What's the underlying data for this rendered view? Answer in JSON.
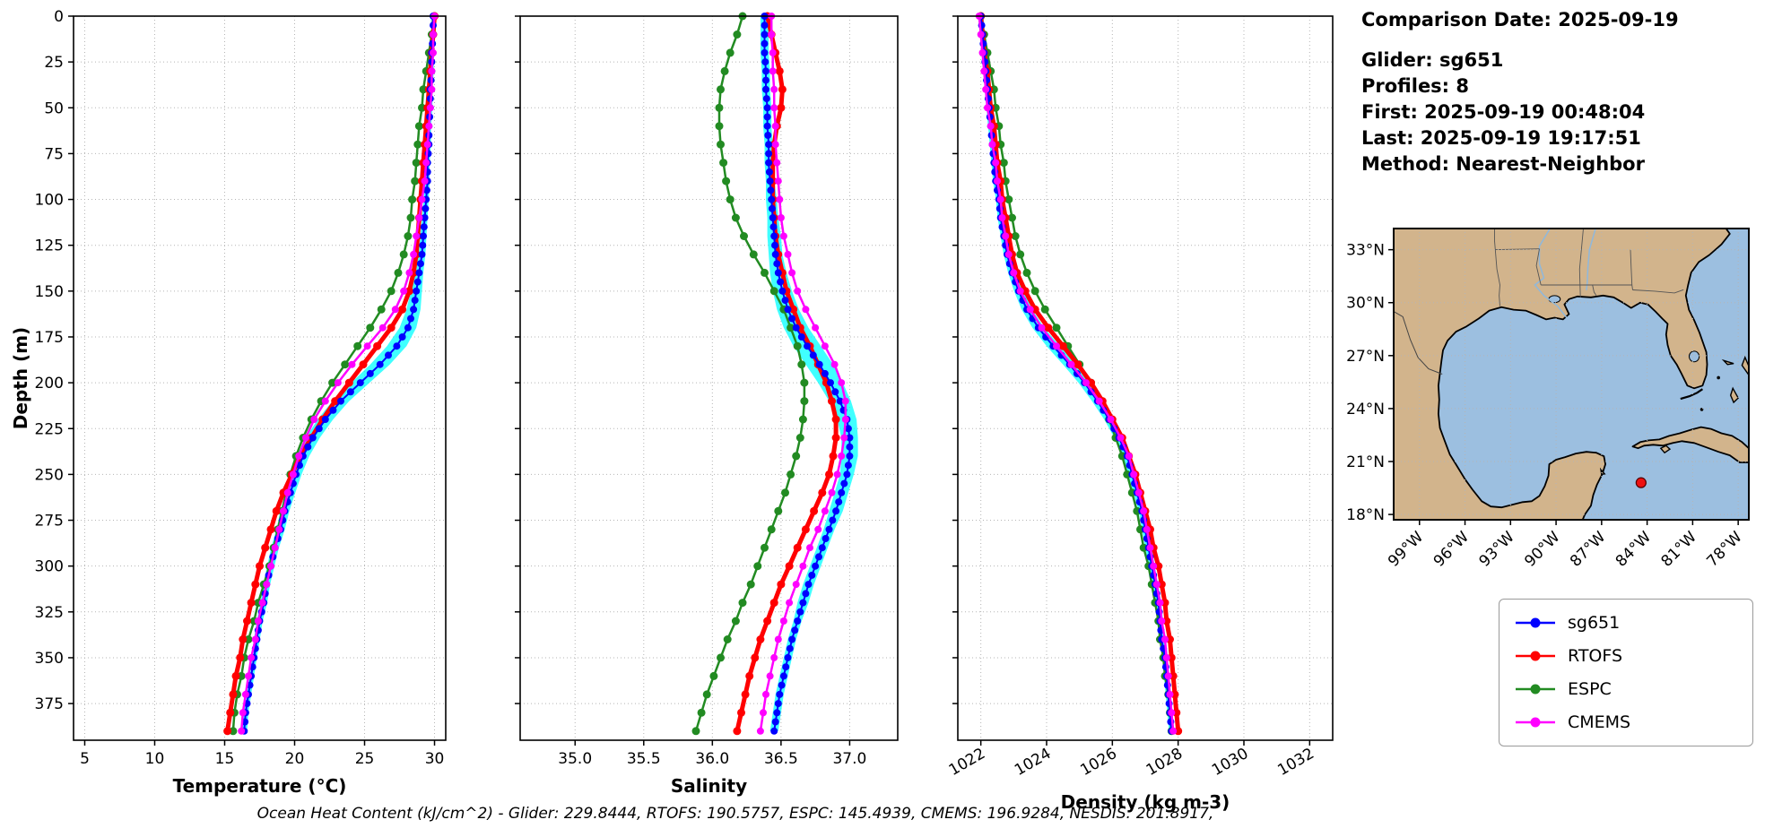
{
  "header": {
    "comparison_date": "Comparison Date: 2025-09-19",
    "glider": "Glider: sg651",
    "profiles": "Profiles: 8",
    "first": "First: 2025-09-19 00:48:04",
    "last": "Last: 2025-09-19 19:17:51",
    "method": "Method: Nearest-Neighbor"
  },
  "caption": {
    "text": "Ocean Heat Content (kJ/cm^2) - Glider: 229.8444,  RTOFS: 190.5757,  ESPC: 145.4939,  CMEMS: 196.9284,  NESDIS: 201.8917,"
  },
  "legend": {
    "items": [
      {
        "label": "sg651",
        "color": "#0000FF"
      },
      {
        "label": "RTOFS",
        "color": "#FF0000"
      },
      {
        "label": "ESPC",
        "color": "#228B22"
      },
      {
        "label": "CMEMS",
        "color": "#FF00FF"
      }
    ]
  },
  "map": {
    "extent": {
      "lon": [
        -100.7,
        -77.3
      ],
      "lat": [
        17.7,
        34.2
      ]
    },
    "lat_ticks": [
      {
        "value": 33,
        "label": "33°N"
      },
      {
        "value": 30,
        "label": "30°N"
      },
      {
        "value": 27,
        "label": "27°N"
      },
      {
        "value": 24,
        "label": "24°N"
      },
      {
        "value": 21,
        "label": "21°N"
      },
      {
        "value": 18,
        "label": "18°N"
      }
    ],
    "lon_ticks": [
      {
        "value": -99,
        "label": "99°W"
      },
      {
        "value": -96,
        "label": "96°W"
      },
      {
        "value": -93,
        "label": "93°W"
      },
      {
        "value": -90,
        "label": "90°W"
      },
      {
        "value": -87,
        "label": "87°W"
      },
      {
        "value": -84,
        "label": "84°W"
      },
      {
        "value": -81,
        "label": "81°W"
      },
      {
        "value": -78,
        "label": "78°W"
      }
    ],
    "marker": {
      "lon": -84.4,
      "lat": 19.8,
      "color": "#EE1111"
    },
    "land_color": "#D2B48C",
    "ocean_color": "#9CBFE0"
  },
  "chart_data": {
    "type": "line",
    "description": "Vertical ocean profiles: glider sg651 vs model fields",
    "depth_label": "Depth (m)",
    "depth_range": [
      0,
      395
    ],
    "depth_ticks": [
      0,
      25,
      50,
      75,
      100,
      125,
      150,
      175,
      200,
      225,
      250,
      275,
      300,
      325,
      350,
      375
    ],
    "depths": [
      0,
      10,
      20,
      30,
      40,
      50,
      60,
      70,
      80,
      90,
      100,
      110,
      120,
      130,
      140,
      150,
      160,
      170,
      180,
      190,
      200,
      210,
      220,
      230,
      240,
      250,
      260,
      270,
      280,
      290,
      300,
      310,
      320,
      330,
      340,
      350,
      360,
      370,
      380,
      390
    ],
    "panels": [
      {
        "id": "temperature",
        "title": "Temperature (°C)",
        "ticks": [
          5,
          10,
          15,
          20,
          25,
          30
        ],
        "range": [
          4.2,
          30.8
        ],
        "decimals": 0,
        "tick_rotation": 0
      },
      {
        "id": "salinity",
        "title": "Salinity",
        "ticks": [
          35.0,
          35.5,
          36.0,
          36.5,
          37.0
        ],
        "range": [
          34.6,
          37.35
        ],
        "decimals": 1,
        "tick_rotation": 0
      },
      {
        "id": "density",
        "title": "Density (kg m-3)",
        "ticks": [
          1022,
          1024,
          1026,
          1028,
          1030,
          1032
        ],
        "range": [
          1021.3,
          1032.7
        ],
        "decimals": 0,
        "tick_rotation": -30
      }
    ],
    "series": [
      {
        "name": "sg651",
        "color": "#0000FF",
        "line_width": 2,
        "marker_size": 4,
        "dense_markers": true,
        "band_color": "#00FFFF",
        "values": {
          "temperature": [
            29.9,
            29.9,
            29.8,
            29.8,
            29.7,
            29.7,
            29.6,
            29.6,
            29.5,
            29.5,
            29.4,
            29.3,
            29.2,
            29.1,
            28.9,
            28.7,
            28.5,
            28.1,
            27.3,
            26.1,
            24.7,
            23.3,
            22.2,
            21.3,
            20.6,
            20.1,
            19.7,
            19.3,
            19.0,
            18.6,
            18.3,
            18.0,
            17.8,
            17.5,
            17.3,
            17.1,
            16.9,
            16.7,
            16.5,
            16.4
          ],
          "salinity": [
            36.38,
            36.38,
            36.38,
            36.39,
            36.39,
            36.4,
            36.4,
            36.41,
            36.41,
            36.42,
            36.43,
            36.44,
            36.45,
            36.46,
            36.48,
            36.51,
            36.55,
            36.61,
            36.69,
            36.78,
            36.86,
            36.93,
            36.98,
            37.0,
            37.0,
            36.98,
            36.94,
            36.9,
            36.85,
            36.8,
            36.75,
            36.7,
            36.66,
            36.62,
            36.58,
            36.55,
            36.52,
            36.49,
            36.47,
            36.45
          ],
          "density": [
            1022.0,
            1022.05,
            1022.1,
            1022.15,
            1022.2,
            1022.25,
            1022.3,
            1022.35,
            1022.4,
            1022.45,
            1022.55,
            1022.6,
            1022.7,
            1022.8,
            1022.95,
            1023.15,
            1023.4,
            1023.75,
            1024.2,
            1024.7,
            1025.15,
            1025.55,
            1025.9,
            1026.2,
            1026.45,
            1026.6,
            1026.75,
            1026.9,
            1027.0,
            1027.1,
            1027.2,
            1027.3,
            1027.4,
            1027.45,
            1027.5,
            1027.6,
            1027.65,
            1027.7,
            1027.75,
            1027.8
          ]
        },
        "band": {
          "temperature": [
            0.15,
            0.15,
            0.15,
            0.15,
            0.15,
            0.15,
            0.15,
            0.15,
            0.15,
            0.15,
            0.18,
            0.2,
            0.22,
            0.25,
            0.3,
            0.4,
            0.5,
            0.6,
            0.7,
            0.7,
            0.65,
            0.6,
            0.55,
            0.5,
            0.45,
            0.4,
            0.35,
            0.32,
            0.3,
            0.28,
            0.26,
            0.25,
            0.24,
            0.22,
            0.21,
            0.2,
            0.2,
            0.2,
            0.2,
            0.2
          ],
          "salinity": [
            0.03,
            0.03,
            0.03,
            0.03,
            0.03,
            0.03,
            0.03,
            0.03,
            0.03,
            0.03,
            0.04,
            0.04,
            0.05,
            0.05,
            0.06,
            0.07,
            0.08,
            0.09,
            0.1,
            0.1,
            0.09,
            0.08,
            0.07,
            0.06,
            0.06,
            0.05,
            0.05,
            0.05,
            0.04,
            0.04,
            0.04,
            0.04,
            0.04,
            0.03,
            0.03,
            0.03,
            0.03,
            0.03,
            0.03,
            0.03
          ],
          "density": [
            0.08,
            0.08,
            0.08,
            0.08,
            0.08,
            0.08,
            0.08,
            0.08,
            0.08,
            0.08,
            0.09,
            0.09,
            0.1,
            0.11,
            0.12,
            0.14,
            0.16,
            0.18,
            0.2,
            0.2,
            0.18,
            0.17,
            0.15,
            0.14,
            0.13,
            0.12,
            0.11,
            0.1,
            0.1,
            0.1,
            0.09,
            0.09,
            0.09,
            0.09,
            0.08,
            0.08,
            0.08,
            0.08,
            0.08,
            0.08
          ]
        }
      },
      {
        "name": "RTOFS",
        "color": "#FF0000",
        "line_width": 5,
        "marker_size": 4.5,
        "values": {
          "temperature": [
            30.0,
            29.9,
            29.8,
            29.7,
            29.6,
            29.5,
            29.4,
            29.3,
            29.2,
            29.1,
            29.0,
            28.9,
            28.8,
            28.7,
            28.5,
            28.2,
            27.7,
            26.9,
            25.9,
            24.9,
            23.9,
            22.9,
            22.0,
            21.2,
            20.4,
            19.8,
            19.2,
            18.7,
            18.3,
            17.9,
            17.5,
            17.2,
            16.9,
            16.6,
            16.3,
            16.1,
            15.8,
            15.6,
            15.4,
            15.2
          ],
          "salinity": [
            36.4,
            36.43,
            36.46,
            36.49,
            36.51,
            36.5,
            36.47,
            36.45,
            36.44,
            36.44,
            36.44,
            36.45,
            36.46,
            36.48,
            36.51,
            36.54,
            36.59,
            36.64,
            36.71,
            36.77,
            36.83,
            36.87,
            36.9,
            36.9,
            36.88,
            36.85,
            36.8,
            36.74,
            36.68,
            36.62,
            36.56,
            36.5,
            36.45,
            36.4,
            36.35,
            36.31,
            36.27,
            36.24,
            36.21,
            36.18
          ],
          "density": [
            1022.0,
            1022.05,
            1022.1,
            1022.2,
            1022.25,
            1022.3,
            1022.4,
            1022.45,
            1022.5,
            1022.6,
            1022.65,
            1022.75,
            1022.85,
            1022.95,
            1023.1,
            1023.35,
            1023.65,
            1024.05,
            1024.5,
            1024.95,
            1025.35,
            1025.7,
            1026.0,
            1026.3,
            1026.5,
            1026.7,
            1026.85,
            1027.0,
            1027.15,
            1027.25,
            1027.4,
            1027.5,
            1027.6,
            1027.65,
            1027.75,
            1027.8,
            1027.85,
            1027.9,
            1027.95,
            1028.0
          ]
        }
      },
      {
        "name": "ESPC",
        "color": "#228B22",
        "line_width": 2.5,
        "marker_size": 4.5,
        "values": {
          "temperature": [
            30.0,
            29.8,
            29.6,
            29.4,
            29.2,
            29.1,
            28.9,
            28.8,
            28.7,
            28.6,
            28.4,
            28.3,
            28.1,
            27.8,
            27.4,
            26.9,
            26.2,
            25.4,
            24.5,
            23.6,
            22.7,
            21.9,
            21.2,
            20.6,
            20.1,
            19.7,
            19.4,
            19.1,
            18.8,
            18.5,
            18.2,
            17.8,
            17.4,
            17.1,
            16.7,
            16.4,
            16.2,
            15.9,
            15.7,
            15.6
          ],
          "salinity": [
            36.22,
            36.18,
            36.13,
            36.09,
            36.06,
            36.05,
            36.05,
            36.06,
            36.08,
            36.1,
            36.13,
            36.17,
            36.23,
            36.3,
            36.38,
            36.45,
            36.52,
            36.57,
            36.62,
            36.65,
            36.67,
            36.67,
            36.66,
            36.64,
            36.61,
            36.57,
            36.53,
            36.48,
            36.43,
            36.38,
            36.33,
            36.28,
            36.22,
            36.17,
            36.11,
            36.06,
            36.01,
            35.96,
            35.92,
            35.88
          ],
          "density": [
            1022.0,
            1022.1,
            1022.2,
            1022.3,
            1022.4,
            1022.45,
            1022.55,
            1022.6,
            1022.7,
            1022.75,
            1022.85,
            1022.95,
            1023.05,
            1023.2,
            1023.4,
            1023.65,
            1023.95,
            1024.3,
            1024.65,
            1025.0,
            1025.35,
            1025.65,
            1025.9,
            1026.1,
            1026.3,
            1026.45,
            1026.6,
            1026.75,
            1026.85,
            1026.95,
            1027.1,
            1027.2,
            1027.3,
            1027.4,
            1027.45,
            1027.55,
            1027.6,
            1027.7,
            1027.75,
            1027.8
          ]
        }
      },
      {
        "name": "CMEMS",
        "color": "#FF00FF",
        "line_width": 2.5,
        "marker_size": 4,
        "values": {
          "temperature": [
            30.0,
            29.9,
            29.9,
            29.8,
            29.8,
            29.7,
            29.6,
            29.5,
            29.4,
            29.3,
            29.1,
            28.9,
            28.7,
            28.5,
            28.2,
            27.8,
            27.2,
            26.3,
            25.2,
            24.1,
            23.1,
            22.2,
            21.4,
            20.8,
            20.3,
            19.9,
            19.5,
            19.2,
            18.9,
            18.6,
            18.3,
            18.0,
            17.7,
            17.4,
            17.2,
            16.9,
            16.7,
            16.5,
            16.3,
            16.2
          ],
          "salinity": [
            36.43,
            36.43,
            36.44,
            36.44,
            36.45,
            36.45,
            36.46,
            36.46,
            36.47,
            36.48,
            36.49,
            36.5,
            36.52,
            36.55,
            36.58,
            36.62,
            36.68,
            36.75,
            36.82,
            36.89,
            36.94,
            36.97,
            36.97,
            36.96,
            36.94,
            36.91,
            36.87,
            36.82,
            36.77,
            36.71,
            36.66,
            36.61,
            36.56,
            36.52,
            36.48,
            36.45,
            36.42,
            36.39,
            36.37,
            36.35
          ],
          "density": [
            1021.95,
            1022.0,
            1022.05,
            1022.1,
            1022.15,
            1022.2,
            1022.3,
            1022.35,
            1022.45,
            1022.5,
            1022.6,
            1022.65,
            1022.75,
            1022.85,
            1023.0,
            1023.2,
            1023.5,
            1023.85,
            1024.3,
            1024.75,
            1025.2,
            1025.6,
            1025.95,
            1026.25,
            1026.5,
            1026.65,
            1026.8,
            1026.95,
            1027.05,
            1027.15,
            1027.25,
            1027.35,
            1027.45,
            1027.5,
            1027.6,
            1027.65,
            1027.7,
            1027.75,
            1027.8,
            1027.85
          ]
        }
      }
    ]
  }
}
